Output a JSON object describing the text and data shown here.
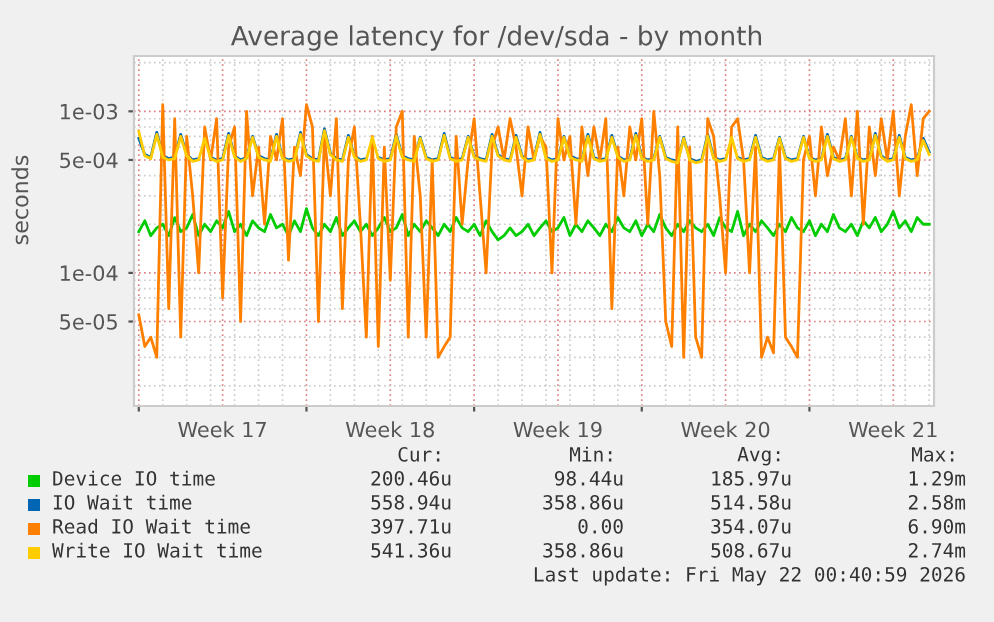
{
  "chart_data": {
    "type": "line",
    "title": "Average latency for /dev/sda - by month",
    "ylabel": "seconds",
    "x": [
      "2026-04-20T00:00",
      "2026-04-20T06:00",
      "2026-04-20T12:00",
      "2026-04-20T18:00",
      "2026-04-21T00:00",
      "2026-04-21T06:00",
      "2026-04-21T12:00",
      "2026-04-21T18:00",
      "2026-04-22T00:00",
      "2026-04-22T06:00",
      "2026-04-22T12:00",
      "2026-04-22T18:00",
      "2026-04-23T00:00",
      "2026-04-23T06:00",
      "2026-04-23T12:00",
      "2026-04-23T18:00",
      "2026-04-24T00:00",
      "2026-04-24T06:00",
      "2026-04-24T12:00",
      "2026-04-24T18:00",
      "2026-04-25T00:00",
      "2026-04-25T06:00",
      "2026-04-25T12:00",
      "2026-04-25T18:00",
      "2026-04-26T00:00",
      "2026-04-26T06:00",
      "2026-04-26T12:00",
      "2026-04-26T18:00",
      "2026-04-27T00:00",
      "2026-04-27T06:00",
      "2026-04-27T12:00",
      "2026-04-27T18:00",
      "2026-04-28T00:00",
      "2026-04-28T06:00",
      "2026-04-28T12:00",
      "2026-04-28T18:00",
      "2026-04-29T00:00",
      "2026-04-29T06:00",
      "2026-04-29T12:00",
      "2026-04-29T18:00",
      "2026-04-30T00:00",
      "2026-04-30T06:00",
      "2026-04-30T12:00",
      "2026-04-30T18:00",
      "2026-05-01T00:00",
      "2026-05-01T06:00",
      "2026-05-01T12:00",
      "2026-05-01T18:00",
      "2026-05-02T00:00",
      "2026-05-02T06:00",
      "2026-05-02T12:00",
      "2026-05-02T18:00",
      "2026-05-03T00:00",
      "2026-05-03T06:00",
      "2026-05-03T12:00",
      "2026-05-03T18:00",
      "2026-05-04T00:00",
      "2026-05-04T06:00",
      "2026-05-04T12:00",
      "2026-05-04T18:00",
      "2026-05-05T00:00",
      "2026-05-05T06:00",
      "2026-05-05T12:00",
      "2026-05-05T18:00",
      "2026-05-06T00:00",
      "2026-05-06T06:00",
      "2026-05-06T12:00",
      "2026-05-06T18:00",
      "2026-05-07T00:00",
      "2026-05-07T06:00",
      "2026-05-07T12:00",
      "2026-05-07T18:00",
      "2026-05-08T00:00",
      "2026-05-08T06:00",
      "2026-05-08T12:00",
      "2026-05-08T18:00",
      "2026-05-09T00:00",
      "2026-05-09T06:00",
      "2026-05-09T12:00",
      "2026-05-09T18:00",
      "2026-05-10T00:00",
      "2026-05-10T06:00",
      "2026-05-10T12:00",
      "2026-05-10T18:00",
      "2026-05-11T00:00",
      "2026-05-11T06:00",
      "2026-05-11T12:00",
      "2026-05-11T18:00",
      "2026-05-12T00:00",
      "2026-05-12T06:00",
      "2026-05-12T12:00",
      "2026-05-12T18:00",
      "2026-05-13T00:00",
      "2026-05-13T06:00",
      "2026-05-13T12:00",
      "2026-05-13T18:00",
      "2026-05-14T00:00",
      "2026-05-14T06:00",
      "2026-05-14T12:00",
      "2026-05-14T18:00",
      "2026-05-15T00:00",
      "2026-05-15T06:00",
      "2026-05-15T12:00",
      "2026-05-15T18:00",
      "2026-05-16T00:00",
      "2026-05-16T06:00",
      "2026-05-16T12:00",
      "2026-05-16T18:00",
      "2026-05-17T00:00",
      "2026-05-17T06:00",
      "2026-05-17T12:00",
      "2026-05-17T18:00",
      "2026-05-18T00:00",
      "2026-05-18T06:00",
      "2026-05-18T12:00",
      "2026-05-18T18:00",
      "2026-05-19T00:00",
      "2026-05-19T06:00",
      "2026-05-19T12:00",
      "2026-05-19T18:00",
      "2026-05-20T00:00",
      "2026-05-20T06:00",
      "2026-05-20T12:00",
      "2026-05-20T18:00",
      "2026-05-21T00:00",
      "2026-05-21T06:00",
      "2026-05-21T12:00",
      "2026-05-21T18:00",
      "2026-05-22T00:00",
      "2026-05-22T06:00",
      "2026-05-22T12:00",
      "2026-05-22T18:00",
      "2026-05-23T00:00"
    ],
    "series": [
      {
        "name": "Device IO time",
        "color": "#00cc00",
        "values": [
          0.00018,
          0.00021,
          0.00017,
          0.00019,
          0.0002,
          0.00017,
          0.00022,
          0.00018,
          0.00019,
          0.00023,
          0.00017,
          0.0002,
          0.00018,
          0.00021,
          0.00019,
          0.00024,
          0.00018,
          0.0002,
          0.00017,
          0.00021,
          0.00019,
          0.00018,
          0.00023,
          0.00019,
          0.0002,
          0.00017,
          0.00021,
          0.00018,
          0.00025,
          0.00019,
          0.00017,
          0.0002,
          0.00018,
          0.00022,
          0.00017,
          0.00019,
          0.00021,
          0.00018,
          0.0002,
          0.00017,
          0.00019,
          0.00022,
          0.00018,
          0.00019,
          0.00023,
          0.00017,
          0.0002,
          0.00018,
          0.00021,
          0.00019,
          0.00017,
          0.0002,
          0.00018,
          0.00022,
          0.00019,
          0.00018,
          0.0002,
          0.00017,
          0.00021,
          0.00018,
          0.00016,
          0.00017,
          0.00019,
          0.00017,
          0.00018,
          0.0002,
          0.00017,
          0.00019,
          0.00021,
          0.00018,
          0.00019,
          0.00022,
          0.00017,
          0.0002,
          0.00018,
          0.00021,
          0.00019,
          0.00017,
          0.0002,
          0.00018,
          0.00022,
          0.00019,
          0.00018,
          0.00021,
          0.00017,
          0.0002,
          0.00018,
          0.00023,
          0.00019,
          0.00017,
          0.0002,
          0.00018,
          0.00021,
          0.00019,
          0.00018,
          0.0002,
          0.00017,
          0.00022,
          0.00019,
          0.00018,
          0.00024,
          0.00017,
          0.0002,
          0.00018,
          0.00021,
          0.00019,
          0.00017,
          0.0002,
          0.00018,
          0.00022,
          0.00019,
          0.00018,
          0.00021,
          0.00017,
          0.0002,
          0.00018,
          0.00023,
          0.00019,
          0.00018,
          0.0002,
          0.00017,
          0.00021,
          0.00019,
          0.00022,
          0.00018,
          0.0002,
          0.00024,
          0.00019,
          0.00021,
          0.00018,
          0.00022,
          0.0002,
          0.0002
        ]
      },
      {
        "name": "IO Wait time",
        "color": "#0066b3",
        "values": [
          0.00068,
          0.00054,
          0.00052,
          0.00074,
          0.00053,
          0.00051,
          0.00052,
          0.00072,
          0.00054,
          0.0005,
          0.00051,
          null,
          0.00052,
          0.0005,
          0.00051,
          0.00073,
          0.00053,
          0.0005,
          0.00052,
          0.0007,
          0.00053,
          0.00051,
          0.0005,
          0.00072,
          0.00052,
          0.0005,
          0.00051,
          0.00074,
          0.00054,
          0.00051,
          0.0005,
          0.00078,
          0.00055,
          0.00051,
          0.0005,
          0.00071,
          0.00053,
          0.0005,
          0.00051,
          null,
          0.00052,
          0.0005,
          0.00051,
          0.00072,
          0.00053,
          0.00051,
          0.0005,
          0.00069,
          0.00052,
          0.0005,
          0.00051,
          0.00073,
          0.00052,
          0.0005,
          0.00051,
          0.0007,
          0.00053,
          0.00051,
          0.0005,
          0.00072,
          0.00054,
          0.00051,
          0.0005,
          0.00071,
          0.00053,
          0.0005,
          0.00051,
          0.00074,
          0.00052,
          0.0005,
          0.00051,
          0.0007,
          0.00053,
          0.00051,
          0.0005,
          0.00072,
          0.00052,
          0.0005,
          0.00051,
          0.00071,
          0.00053,
          0.0005,
          0.00051,
          0.00073,
          0.00052,
          0.0005,
          0.00051,
          0.0007,
          0.00052,
          0.0005,
          0.00049,
          0.00069,
          0.00051,
          0.00049,
          0.0005,
          0.00072,
          0.00052,
          0.0005,
          0.00051,
          null,
          0.00052,
          0.0005,
          0.00051,
          0.00071,
          0.00052,
          0.0005,
          0.00051,
          0.00069,
          0.00052,
          0.0005,
          0.00051,
          0.0007,
          0.00052,
          0.0005,
          0.00051,
          0.00072,
          0.00052,
          0.0005,
          0.00051,
          0.0007,
          0.00052,
          0.0005,
          0.00051,
          0.00073,
          0.00053,
          0.0005,
          0.00051,
          0.00071,
          0.00052,
          0.0005,
          0.00051,
          0.00068,
          0.00056
        ]
      },
      {
        "name": "Read IO Wait time",
        "color": "#ff8000",
        "values": [
          5.5e-05,
          3.5e-05,
          4e-05,
          3e-05,
          0.0011,
          6e-05,
          0.0009,
          4e-05,
          0.0007,
          0.0003,
          0.0001,
          0.0008,
          0.0005,
          0.0009,
          7e-05,
          0.0006,
          0.0008,
          5e-05,
          0.001,
          0.0003,
          0.0006,
          0.0002,
          0.0007,
          0.0005,
          0.0009,
          0.00012,
          0.0006,
          0.0004,
          0.0011,
          0.0008,
          5e-05,
          0.0007,
          0.0003,
          0.0009,
          6e-05,
          0.0005,
          0.0008,
          0.0002,
          4e-05,
          0.0007,
          3.5e-05,
          0.0006,
          9e-05,
          0.0008,
          0.001,
          4e-05,
          0.0007,
          0.0003,
          4e-05,
          0.0005,
          3e-05,
          3.5e-05,
          4e-05,
          0.0007,
          0.0002,
          0.0005,
          0.0009,
          0.0003,
          0.0001,
          0.0006,
          0.0008,
          0.0005,
          0.0009,
          0.0006,
          0.0003,
          0.0008,
          0.0005,
          0.0007,
          0.0006,
          0.0001,
          0.0009,
          0.0005,
          0.0007,
          0.0002,
          0.0008,
          0.0004,
          0.0008,
          0.0005,
          0.0009,
          6e-05,
          0.0006,
          0.0003,
          0.0008,
          0.0005,
          0.0009,
          0.0002,
          0.001,
          0.0004,
          5e-05,
          3.5e-05,
          0.0008,
          3e-05,
          0.0006,
          4e-05,
          3e-05,
          0.0009,
          0.0007,
          0.0003,
          0.0001,
          0.0008,
          0.0009,
          0.0005,
          0.0001,
          0.0006,
          3e-05,
          4e-05,
          3.2e-05,
          0.0006,
          4e-05,
          3.5e-05,
          3e-05,
          0.0005,
          0.0007,
          0.0003,
          0.0008,
          0.0004,
          0.0006,
          0.0005,
          0.0009,
          0.0003,
          0.001,
          0.0002,
          0.0008,
          0.0004,
          0.0009,
          0.0005,
          0.001,
          0.0003,
          0.0007,
          0.0011,
          0.0004,
          0.0009,
          0.001
        ]
      },
      {
        "name": "Write IO Wait time",
        "color": "#ffcc00",
        "values": [
          0.00075,
          0.00053,
          0.00051,
          0.00072,
          0.00052,
          0.0005,
          0.00051,
          0.0007,
          0.00053,
          0.00049,
          0.0005,
          0.00068,
          0.00051,
          0.00049,
          0.0005,
          0.00071,
          0.00052,
          0.00049,
          0.00051,
          0.00069,
          0.00052,
          0.0005,
          0.00049,
          0.0007,
          0.00051,
          0.00049,
          0.0005,
          0.00072,
          0.00053,
          0.0005,
          0.00049,
          0.00076,
          0.00054,
          0.0005,
          0.00049,
          0.00069,
          0.00052,
          0.00049,
          0.0005,
          0.00069,
          0.00051,
          0.00049,
          0.0005,
          0.0007,
          0.00052,
          0.0005,
          0.00049,
          0.00068,
          0.00051,
          0.00049,
          0.0005,
          0.00071,
          0.00051,
          0.00049,
          0.0005,
          0.00069,
          0.00052,
          0.0005,
          0.00049,
          0.0007,
          0.00053,
          0.0005,
          0.00049,
          0.00069,
          0.00052,
          0.00049,
          0.0005,
          0.00072,
          0.00051,
          0.00049,
          0.0005,
          0.00069,
          0.00052,
          0.0005,
          0.00049,
          0.0007,
          0.00051,
          0.00049,
          0.0005,
          0.00069,
          0.00052,
          0.00049,
          0.0005,
          0.00071,
          0.00051,
          0.00049,
          0.0005,
          0.00069,
          0.00051,
          0.00049,
          0.00048,
          0.00068,
          0.0005,
          0.00048,
          0.00049,
          0.0007,
          0.00051,
          0.00049,
          0.0005,
          0.00069,
          0.00051,
          0.00049,
          0.0005,
          0.00069,
          0.00051,
          0.00049,
          0.0005,
          0.00068,
          0.00051,
          0.00049,
          0.0005,
          0.00069,
          0.00051,
          0.00049,
          0.0005,
          0.0007,
          0.00051,
          0.00049,
          0.0005,
          0.00069,
          0.00051,
          0.00049,
          0.0005,
          0.00071,
          0.00052,
          0.00049,
          0.0005,
          0.00069,
          0.00051,
          0.00049,
          0.0005,
          0.00066,
          0.00054
        ]
      }
    ],
    "log": "y",
    "ylim": [
      1.5e-05,
      0.0022
    ],
    "yticks": [
      {
        "value": 5e-05,
        "label": "5e-05"
      },
      {
        "value": 0.0001,
        "label": "1e-04"
      },
      {
        "value": 0.0005,
        "label": "5e-04"
      },
      {
        "value": 0.001,
        "label": "1e-03"
      }
    ],
    "xlim": [
      "2026-04-19T19:12",
      "2026-05-23T04:48"
    ],
    "xticks": [
      {
        "value": "2026-04-20T00:00",
        "label": null
      },
      {
        "value": "2026-04-23T12:00",
        "label": "Week 17"
      },
      {
        "value": "2026-04-27T00:00",
        "label": null
      },
      {
        "value": "2026-04-30T12:00",
        "label": "Week 18"
      },
      {
        "value": "2026-05-04T00:00",
        "label": null
      },
      {
        "value": "2026-05-07T12:00",
        "label": "Week 19"
      },
      {
        "value": "2026-05-11T00:00",
        "label": null
      },
      {
        "value": "2026-05-14T12:00",
        "label": "Week 20"
      },
      {
        "value": "2026-05-18T00:00",
        "label": null
      },
      {
        "value": "2026-05-21T12:00",
        "label": "Week 21"
      }
    ],
    "grid": true,
    "legend": "bottom",
    "annotations": [
      "Cur:",
      "Min:",
      "Avg:",
      "Max:",
      "200.46u",
      "98.44u",
      "185.97u",
      "1.29m",
      "558.94u",
      "358.86u",
      "514.58u",
      "2.58m",
      "397.71u",
      "0.00",
      "354.07u",
      "6.90m",
      "541.36u",
      "358.86u",
      "508.67u",
      "2.74m",
      "Last update: Fri May 22 00:40:59 2026"
    ]
  }
}
